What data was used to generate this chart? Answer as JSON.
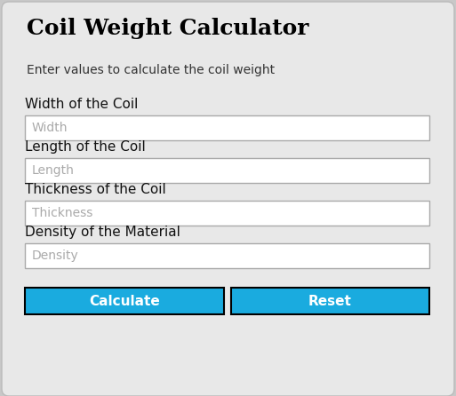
{
  "title": "Coil Weight Calculator",
  "subtitle": "Enter values to calculate the coil weight",
  "fields": [
    {
      "label": "Width of the Coil",
      "placeholder": "Width"
    },
    {
      "label": "Length of the Coil",
      "placeholder": "Length"
    },
    {
      "label": "Thickness of the Coil",
      "placeholder": "Thickness"
    },
    {
      "label": "Density of the Material",
      "placeholder": "Density"
    }
  ],
  "buttons": [
    {
      "text": "Calculate",
      "color": "#1aabdf"
    },
    {
      "text": "Reset",
      "color": "#1aabdf"
    }
  ],
  "bg_color": "#c8c8c8",
  "card_color": "#e8e8e8",
  "input_bg": "#ffffff",
  "input_border": "#aaaaaa",
  "placeholder_color": "#aaaaaa",
  "label_color": "#111111",
  "title_color": "#000000",
  "subtitle_color": "#333333",
  "button_text_color": "#ffffff",
  "button_border": "#000000",
  "title_fontsize": 18,
  "subtitle_fontsize": 10,
  "label_fontsize": 11,
  "placeholder_fontsize": 10,
  "button_fontsize": 11
}
